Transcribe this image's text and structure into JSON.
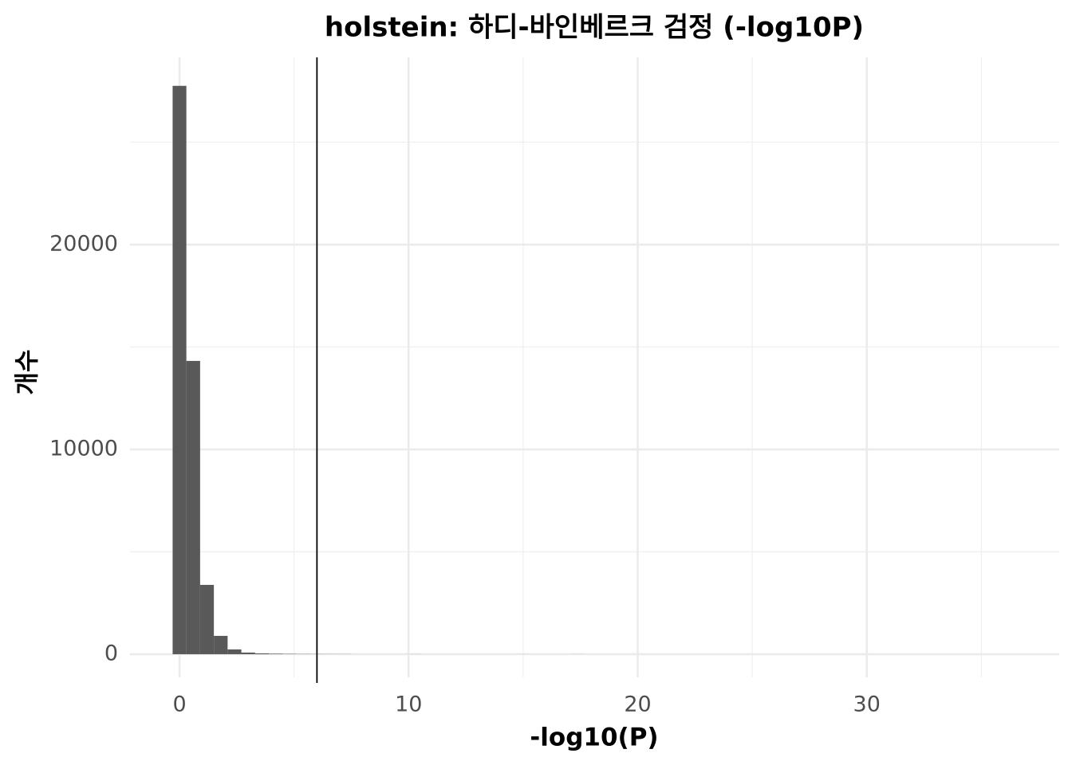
{
  "chart_data": {
    "type": "histogram",
    "title": "holstein: 하디-바인베르크 검정 (-log10P)",
    "x_label": "-log10(P)",
    "y_label": "개수",
    "bins": [
      -0.3,
      0.3,
      0.9,
      1.5,
      2.1,
      2.7,
      3.3,
      3.9,
      4.5,
      5.1,
      5.7,
      6.3,
      6.9,
      7.5,
      8.1,
      8.7,
      9.3,
      9.9,
      10.5,
      11.1,
      11.7,
      12.3,
      12.9,
      13.5,
      14.1,
      14.7,
      15.3,
      15.9,
      16.5,
      17.1,
      17.7
    ],
    "values": [
      27750,
      14320,
      3385,
      895,
      233,
      80,
      40,
      25,
      15,
      10,
      8,
      6,
      5,
      0,
      0,
      0,
      0,
      3,
      0,
      0,
      0,
      0,
      0,
      0,
      0,
      2,
      0,
      0,
      0,
      2
    ],
    "color": "#595959",
    "vline": 6,
    "xlim": [
      -2.16,
      38.4
    ],
    "xticks": [
      0,
      10,
      20,
      30
    ],
    "x_minor_ticks": [
      5,
      15,
      25,
      35
    ],
    "ylim": [
      -1130,
      29140
    ],
    "yticks": [
      0,
      10000,
      20000
    ],
    "y_minor_ticks": [
      5000,
      15000,
      25000
    ],
    "grid": true
  }
}
